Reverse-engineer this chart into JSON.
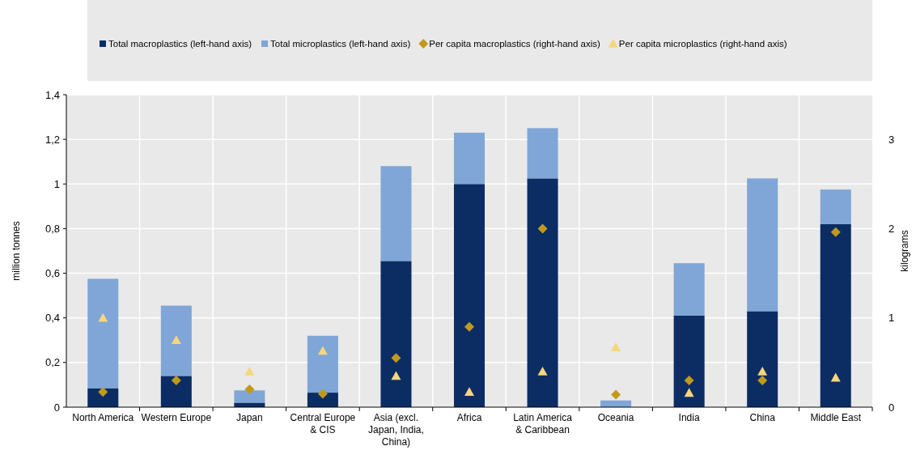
{
  "chart_data": {
    "type": "bar",
    "stacked": true,
    "categories": [
      "North America",
      "Western Europe",
      "Japan",
      "Central Europe & CIS",
      "Asia (excl. Japan, India, China)",
      "Africa",
      "Latin America & Caribbean",
      "Oceania",
      "India",
      "China",
      "Middle East"
    ],
    "series": [
      {
        "name": "Total macroplastics (left-hand axis)",
        "color": "#0c2c64",
        "values": [
          0.085,
          0.14,
          0.02,
          0.065,
          0.655,
          1.0,
          1.025,
          0,
          0.41,
          0.43,
          0.82
        ]
      },
      {
        "name": "Total microplastics (left-hand axis)",
        "color": "#7fa6d6",
        "values": [
          0.49,
          0.315,
          0.055,
          0.255,
          0.425,
          0.23,
          0.225,
          0.03,
          0.235,
          0.595,
          0.155
        ]
      },
      {
        "name": "Per capita macroplastics (right-hand axis)",
        "type": "scatter",
        "marker": "diamond",
        "axis": "y2",
        "color": "#c09a1c",
        "values": [
          0.17,
          0.3,
          0.2,
          0.15,
          0.55,
          0.9,
          2.0,
          0.14,
          0.3,
          0.3,
          1.96
        ]
      },
      {
        "name": "Per capita microplastics (right-hand axis)",
        "type": "scatter",
        "marker": "triangle",
        "axis": "y2",
        "color": "#f6d67a",
        "values": [
          1.0,
          0.75,
          0.4,
          0.63,
          0.35,
          0.17,
          0.4,
          0.67,
          0.16,
          0.4,
          0.33
        ]
      }
    ],
    "ylabel": "million tonnes",
    "y2label": "kilograms",
    "ylim": [
      0,
      1.4
    ],
    "yticks": [
      0,
      {
        "value": 0.2,
        "label": "0,2"
      },
      {
        "value": 0.4,
        "label": "0,4"
      },
      {
        "value": 0.6,
        "label": "0,6"
      },
      {
        "value": 0.8,
        "label": "0,8"
      },
      1,
      {
        "value": 1.2,
        "label": "1,2"
      },
      {
        "value": 1.4,
        "label": "1,4"
      }
    ],
    "y2lim": [
      0,
      3.5
    ],
    "y2ticks": [
      0,
      1,
      2,
      3
    ],
    "grid": true,
    "legend": "top"
  }
}
